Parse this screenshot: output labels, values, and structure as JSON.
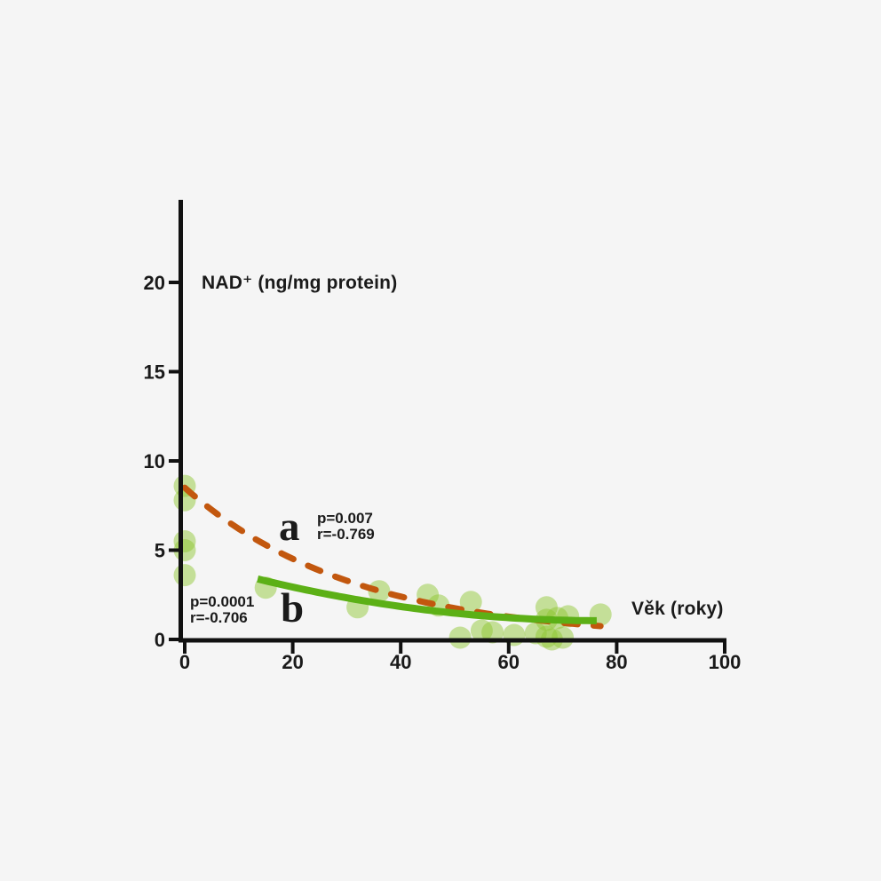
{
  "page": {
    "background_color": "#f5f5f5",
    "text_color": "#1a1a1a"
  },
  "chart_data": {
    "type": "scatter",
    "xlabel": "Věk (roky)",
    "ylabel": "NAD⁺ (ng/mg protein)",
    "xlim": [
      0,
      100
    ],
    "ylim": [
      0,
      24
    ],
    "x_ticks": [
      0,
      20,
      40,
      60,
      80,
      100
    ],
    "y_ticks": [
      0,
      5,
      10,
      15,
      20
    ],
    "grid": false,
    "legend": "none",
    "axis_color": "#111111",
    "point_color": "rgba(141,198,47,0.47)",
    "point_radius_px": 12.5,
    "points": [
      [
        0,
        8.6
      ],
      [
        0,
        7.8
      ],
      [
        0,
        5.5
      ],
      [
        0,
        5.0
      ],
      [
        0,
        3.6
      ],
      [
        15,
        2.9
      ],
      [
        32,
        1.8
      ],
      [
        36,
        2.7
      ],
      [
        45,
        2.5
      ],
      [
        47,
        1.9
      ],
      [
        51,
        0.1
      ],
      [
        53,
        2.1
      ],
      [
        55,
        0.5
      ],
      [
        57,
        0.4
      ],
      [
        61,
        0.25
      ],
      [
        65,
        0.35
      ],
      [
        67,
        1.8
      ],
      [
        67,
        1.1
      ],
      [
        67,
        0.15
      ],
      [
        68,
        0.0
      ],
      [
        69,
        1.2
      ],
      [
        70,
        0.1
      ],
      [
        71,
        1.3
      ],
      [
        77,
        1.4
      ]
    ],
    "series": [
      {
        "name": "a",
        "kind": "fit-curve",
        "line_style": "dashed",
        "color": "#c2570e",
        "annotation": {
          "p": "p=0.007",
          "r": "r=-0.769"
        },
        "fit": {
          "model": "exponential",
          "y0": 8.5,
          "decay": 0.0316,
          "x_range": [
            0,
            77
          ]
        }
      },
      {
        "name": "b",
        "kind": "fit-curve",
        "line_style": "solid",
        "color": "#5cb016",
        "annotation": {
          "p": "p=0.0001",
          "r": "r=-0.706"
        },
        "fit": {
          "model": "quadratic",
          "a": 0.00058,
          "vertex_x": 77,
          "min_y": 1.05,
          "x_range": [
            13.5,
            76.3
          ]
        }
      }
    ]
  }
}
